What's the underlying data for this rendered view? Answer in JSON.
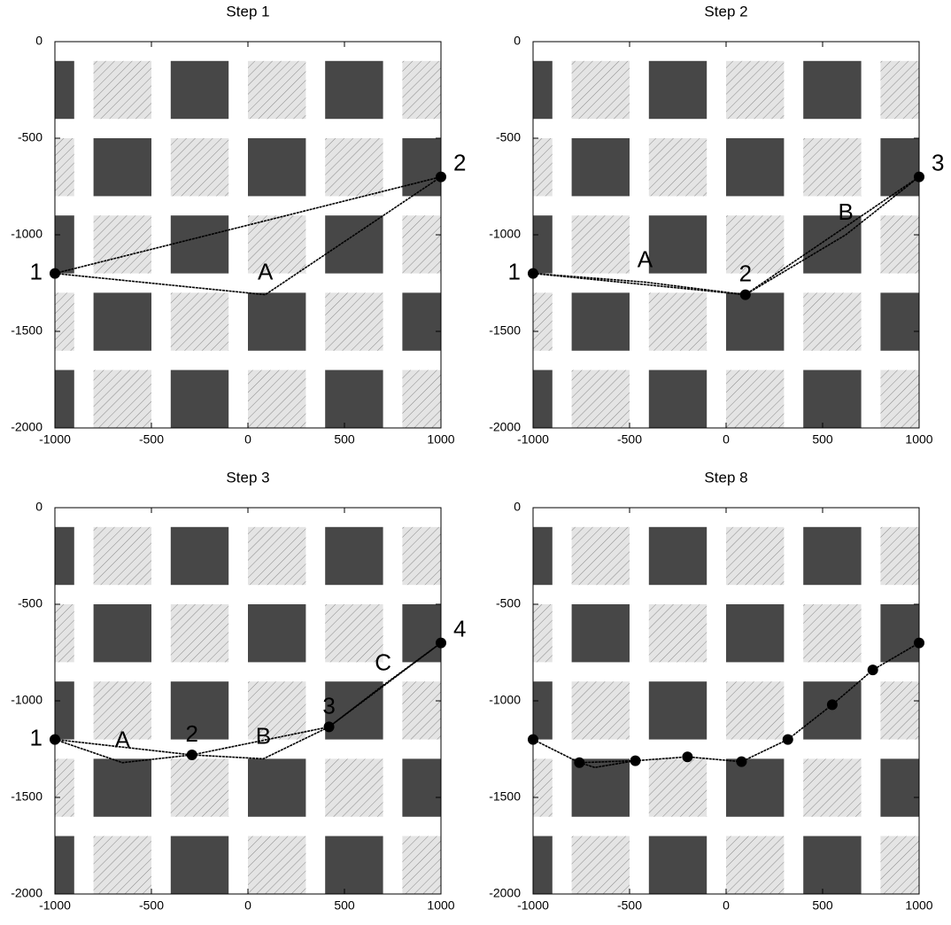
{
  "chart_data": [
    {
      "type": "line",
      "title": "Step 1",
      "xlim": [
        -1000,
        1000
      ],
      "ylim": [
        -2000,
        0
      ],
      "xticks": [
        -1000,
        -500,
        0,
        500,
        1000
      ],
      "yticks": [
        0,
        -500,
        -1000,
        -1500,
        -2000
      ],
      "series": [
        {
          "color": "#000000",
          "markers": true,
          "x": [
            -1000,
            1000
          ],
          "y": [
            -1200,
            -700
          ],
          "labels": [
            "1",
            "2"
          ]
        },
        {
          "color": "#000000",
          "markers": false,
          "x": [
            -1000,
            90,
            1000
          ],
          "y": [
            -1200,
            -1310,
            -700
          ],
          "labels": [
            null,
            "A",
            null
          ]
        }
      ]
    },
    {
      "type": "line",
      "title": "Step 2",
      "xlim": [
        -1000,
        1000
      ],
      "ylim": [
        -2000,
        0
      ],
      "xticks": [
        -1000,
        -500,
        0,
        500,
        1000
      ],
      "yticks": [
        0,
        -500,
        -1000,
        -1500,
        -2000
      ],
      "series": [
        {
          "color": "#000000",
          "markers": true,
          "x": [
            -1000,
            100,
            1000
          ],
          "y": [
            -1200,
            -1310,
            -700
          ],
          "labels": [
            "1",
            "2",
            "3"
          ]
        },
        {
          "color": "#000000",
          "markers": false,
          "x": [
            -1000,
            -420,
            100,
            620,
            1000
          ],
          "y": [
            -1200,
            -1245,
            -1310,
            -1000,
            -700
          ],
          "labels": [
            null,
            "A",
            null,
            "B",
            null
          ]
        }
      ]
    },
    {
      "type": "line",
      "title": "Step 3",
      "xlim": [
        -1000,
        1000
      ],
      "ylim": [
        -2000,
        0
      ],
      "xticks": [
        -1000,
        -500,
        0,
        500,
        1000
      ],
      "yticks": [
        0,
        -500,
        -1000,
        -1500,
        -2000
      ],
      "series": [
        {
          "color": "#000000",
          "markers": true,
          "x": [
            -1000,
            -290,
            420,
            1000
          ],
          "y": [
            -1200,
            -1280,
            -1135,
            -700
          ],
          "labels": [
            "1",
            "2",
            "3",
            "4"
          ]
        },
        {
          "color": "#000000",
          "markers": false,
          "x": [
            -1000,
            -650,
            -290,
            80,
            420,
            700,
            1000
          ],
          "y": [
            -1200,
            -1320,
            -1280,
            -1300,
            -1135,
            -920,
            -700
          ],
          "labels": [
            null,
            "A",
            null,
            "B",
            null,
            "C",
            null
          ]
        }
      ]
    },
    {
      "type": "line",
      "title": "Step 8",
      "xlim": [
        -1000,
        1000
      ],
      "ylim": [
        -2000,
        0
      ],
      "xticks": [
        -1000,
        -500,
        0,
        500,
        1000
      ],
      "yticks": [
        0,
        -500,
        -1000,
        -1500,
        -2000
      ],
      "series": [
        {
          "color": "#000000",
          "markers": true,
          "x": [
            -1000,
            -760,
            -470,
            -200,
            80,
            320,
            550,
            760,
            1000
          ],
          "y": [
            -1200,
            -1320,
            -1310,
            -1290,
            -1315,
            -1200,
            -1020,
            -840,
            -700
          ]
        },
        {
          "color": "#000000",
          "markers": false,
          "x": [
            -760,
            -680,
            -470
          ],
          "y": [
            -1320,
            -1345,
            -1310
          ]
        }
      ]
    }
  ]
}
